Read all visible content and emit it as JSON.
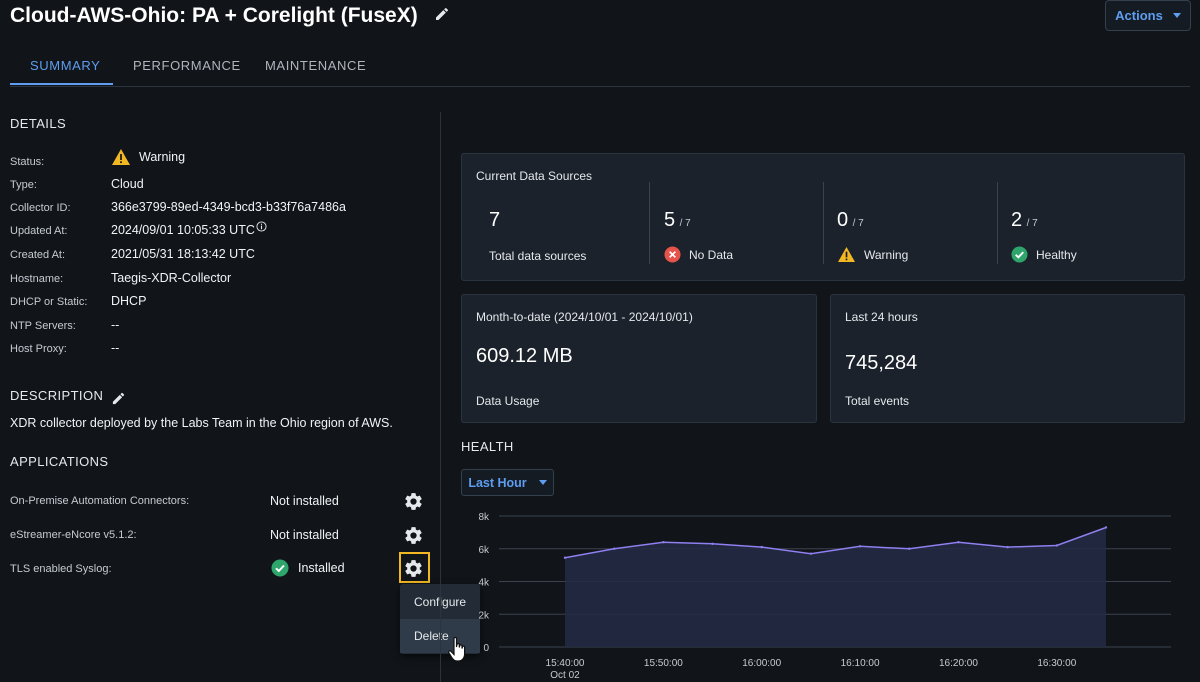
{
  "header": {
    "title": "Cloud-AWS-Ohio: PA + Corelight (FuseX)",
    "actions_label": "Actions"
  },
  "tabs": [
    {
      "label": "SUMMARY",
      "active": true
    },
    {
      "label": "PERFORMANCE",
      "active": false
    },
    {
      "label": "MAINTENANCE",
      "active": false
    }
  ],
  "details": {
    "heading": "DETAILS",
    "rows": [
      {
        "label": "Status:",
        "value": "Warning"
      },
      {
        "label": "Type:",
        "value": "Cloud"
      },
      {
        "label": "Collector ID:",
        "value": "366e3799-89ed-4349-bcd3-b33f76a7486a"
      },
      {
        "label": "Updated At:",
        "value": "2024/09/01 10:05:33 UTC"
      },
      {
        "label": "Created At:",
        "value": "2021/05/31 18:13:42 UTC"
      },
      {
        "label": "Hostname:",
        "value": "Taegis-XDR-Collector"
      },
      {
        "label": "DHCP or Static:",
        "value": "DHCP"
      },
      {
        "label": "NTP Servers:",
        "value": "--"
      },
      {
        "label": "Host Proxy:",
        "value": "--"
      }
    ]
  },
  "description": {
    "heading": "DESCRIPTION",
    "text": "XDR collector deployed by the Labs Team in the Ohio region of AWS."
  },
  "applications": {
    "heading": "APPLICATIONS",
    "items": [
      {
        "label": "On-Premise Automation Connectors:",
        "status": "Not installed"
      },
      {
        "label": "eStreamer-eNcore v5.1.2:",
        "status": "Not installed"
      },
      {
        "label": "TLS enabled Syslog:",
        "status": "Installed"
      }
    ],
    "menu": [
      "Configure",
      "Delete"
    ]
  },
  "data_sources": {
    "title": "Current Data Sources",
    "total": "7",
    "total_label": "Total data sources",
    "denominator": "/ 7",
    "no_data": "5",
    "no_data_label": "No Data",
    "warning": "0",
    "warning_label": "Warning",
    "healthy": "2",
    "healthy_label": "Healthy"
  },
  "usage": {
    "title": "Month-to-date (2024/10/01 - 2024/10/01)",
    "value": "609.12 MB",
    "label": "Data Usage"
  },
  "events": {
    "title": "Last 24 hours",
    "value": "745,284",
    "label": "Total events"
  },
  "health": {
    "heading": "HEALTH",
    "range_label": "Last Hour"
  },
  "colors": {
    "accent": "#5e9df0",
    "warning": "#f2b824",
    "error": "#e5534b",
    "success": "#2ea66b",
    "series": "#8f7ff0"
  },
  "chart_data": {
    "type": "area",
    "x": [
      "15:40:00",
      "15:45:00",
      "15:50:00",
      "15:55:00",
      "16:00:00",
      "16:05:00",
      "16:10:00",
      "16:15:00",
      "16:20:00",
      "16:25:00",
      "16:30:00",
      "16:35:00"
    ],
    "values": [
      5450,
      6000,
      6400,
      6300,
      6100,
      5700,
      6150,
      6000,
      6400,
      6100,
      6200,
      7300
    ],
    "yticks": [
      "8k",
      "6k",
      "4k",
      "2k",
      "0"
    ],
    "xticks": [
      "15:40:00",
      "15:50:00",
      "16:00:00",
      "16:10:00",
      "16:20:00",
      "16:30:00"
    ],
    "x_sublabel": "Oct 02",
    "ylim": [
      0,
      8000
    ],
    "grid": true
  }
}
